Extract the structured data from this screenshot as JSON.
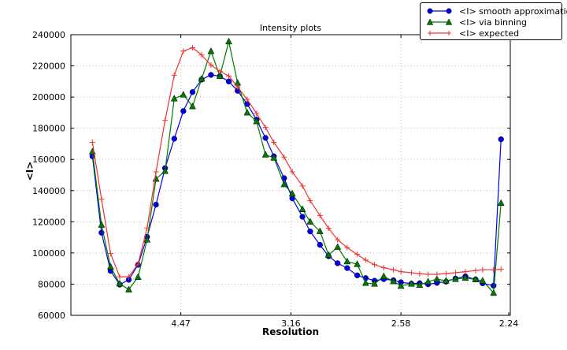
{
  "chart_data": {
    "type": "line",
    "title": "Intensity plots",
    "xlabel": "Resolution",
    "ylabel": "<I>",
    "grid": "dotted",
    "legend_position": "upper right, overlapping top-right of axes",
    "y_axis": {
      "min": 60000,
      "max": 240000,
      "tick_step": 20000,
      "tick_labels": [
        "60000",
        "80000",
        "100000",
        "120000",
        "140000",
        "160000",
        "180000",
        "200000",
        "220000",
        "240000"
      ]
    },
    "x_axis": {
      "unit": "resolution (A), axis linear in 1/d^2",
      "max_inv_d2": 0.2,
      "tick_labels": [
        "4.47",
        "3.16",
        "2.58",
        "2.24"
      ]
    },
    "x_resolution": [
      10.1,
      8.47,
      7.44,
      6.71,
      6.16,
      5.72,
      5.37,
      5.08,
      4.83,
      4.61,
      4.42,
      4.25,
      4.1,
      3.96,
      3.84,
      3.73,
      3.63,
      3.53,
      3.44,
      3.36,
      3.29,
      3.21,
      3.15,
      3.08,
      3.03,
      2.97,
      2.92,
      2.87,
      2.82,
      2.77,
      2.73,
      2.69,
      2.65,
      2.61,
      2.58,
      2.54,
      2.51,
      2.48,
      2.45,
      2.42,
      2.39,
      2.36,
      2.33,
      2.31,
      2.28,
      2.26
    ],
    "series": [
      {
        "name": "<I> smooth approximation",
        "color": "#0000e8",
        "marker": "circle",
        "values": [
          162000,
          113000,
          88500,
          79700,
          82800,
          92400,
          110300,
          131000,
          154400,
          173300,
          191000,
          203200,
          211200,
          214200,
          213400,
          210000,
          204000,
          195500,
          185500,
          173800,
          162000,
          148000,
          135000,
          123200,
          113800,
          105200,
          97900,
          93400,
          90300,
          85600,
          83900,
          82200,
          83200,
          82500,
          81200,
          80300,
          80600,
          79900,
          80800,
          81600,
          83600,
          85000,
          83000,
          80500,
          79000,
          172900
        ]
      },
      {
        "name": "<I> via binning",
        "color": "#007a00",
        "marker": "triangle",
        "values": [
          165000,
          118000,
          91200,
          80300,
          76500,
          84500,
          108500,
          147500,
          152500,
          199000,
          201500,
          194000,
          211700,
          229400,
          213400,
          235600,
          209100,
          190000,
          184400,
          163000,
          161000,
          144000,
          138000,
          128000,
          120000,
          113900,
          98700,
          103800,
          94500,
          92800,
          80700,
          80200,
          85000,
          81800,
          78800,
          80200,
          79400,
          81600,
          83200,
          82200,
          83200,
          84000,
          83000,
          82200,
          74300,
          132000
        ]
      },
      {
        "name": "<I> expected",
        "color": "#ee3333",
        "marker": "plus",
        "values": [
          171000,
          134500,
          99600,
          84700,
          84700,
          92900,
          116000,
          152000,
          185000,
          214000,
          229500,
          231600,
          227000,
          220500,
          216500,
          213500,
          206500,
          198500,
          189500,
          180500,
          171000,
          161500,
          152000,
          143000,
          133500,
          124000,
          115800,
          108500,
          103500,
          99100,
          95400,
          92500,
          90500,
          89200,
          88000,
          87300,
          86700,
          86300,
          86300,
          86800,
          87300,
          88000,
          88700,
          89200,
          89200,
          89500
        ]
      }
    ]
  }
}
